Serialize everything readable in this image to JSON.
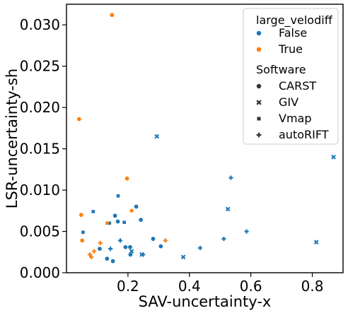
{
  "chart_data": {
    "type": "scatter",
    "xlabel": "SAV-uncertainty-x",
    "ylabel": "LSR-uncertainty-sh",
    "xlim": [
      0.0,
      0.9
    ],
    "ylim": [
      0.0,
      0.0325
    ],
    "xticks": [
      0.2,
      0.4,
      0.6,
      0.8
    ],
    "yticks": [
      0.0,
      0.005,
      0.01,
      0.015,
      0.02,
      0.025,
      0.03
    ],
    "xtick_labels": [
      "0.2",
      "0.4",
      "0.6",
      "0.8"
    ],
    "ytick_labels": [
      "0.000",
      "0.005",
      "0.010",
      "0.015",
      "0.020",
      "0.025",
      "0.030"
    ],
    "grid": false,
    "legend": {
      "placement": "top-right",
      "hue_title": "large_velodiff",
      "hue_entries": [
        {
          "label": "False",
          "color": "#1f77b4"
        },
        {
          "label": "True",
          "color": "#ff7f0e"
        }
      ],
      "style_title": "Software",
      "style_entries": [
        {
          "label": "CARST",
          "marker": "circle"
        },
        {
          "label": "GIV",
          "marker": "x"
        },
        {
          "label": "Vmap",
          "marker": "square"
        },
        {
          "label": "autoRIFT",
          "marker": "plus"
        }
      ]
    },
    "points": [
      {
        "x": 0.148,
        "y": 0.0312,
        "hue": "True",
        "software": "CARST"
      },
      {
        "x": 0.041,
        "y": 0.0186,
        "hue": "True",
        "software": "CARST"
      },
      {
        "x": 0.197,
        "y": 0.0114,
        "hue": "True",
        "software": "CARST"
      },
      {
        "x": 0.048,
        "y": 0.007,
        "hue": "True",
        "software": "CARST"
      },
      {
        "x": 0.051,
        "y": 0.0039,
        "hue": "True",
        "software": "CARST"
      },
      {
        "x": 0.227,
        "y": 0.008,
        "hue": "False",
        "software": "CARST"
      },
      {
        "x": 0.158,
        "y": 0.0069,
        "hue": "False",
        "software": "CARST"
      },
      {
        "x": 0.242,
        "y": 0.0064,
        "hue": "False",
        "software": "CARST"
      },
      {
        "x": 0.167,
        "y": 0.0062,
        "hue": "False",
        "software": "CARST"
      },
      {
        "x": 0.282,
        "y": 0.0041,
        "hue": "False",
        "software": "CARST"
      },
      {
        "x": 0.108,
        "y": 0.0029,
        "hue": "False",
        "software": "CARST"
      },
      {
        "x": 0.192,
        "y": 0.0031,
        "hue": "False",
        "software": "CARST"
      },
      {
        "x": 0.207,
        "y": 0.0031,
        "hue": "False",
        "software": "CARST"
      },
      {
        "x": 0.307,
        "y": 0.0032,
        "hue": "False",
        "software": "CARST"
      },
      {
        "x": 0.208,
        "y": 0.0022,
        "hue": "False",
        "software": "CARST"
      },
      {
        "x": 0.132,
        "y": 0.0017,
        "hue": "False",
        "software": "CARST"
      },
      {
        "x": 0.151,
        "y": 0.0014,
        "hue": "False",
        "software": "CARST"
      },
      {
        "x": 0.294,
        "y": 0.0165,
        "hue": "False",
        "software": "GIV"
      },
      {
        "x": 0.869,
        "y": 0.014,
        "hue": "False",
        "software": "GIV"
      },
      {
        "x": 0.525,
        "y": 0.0077,
        "hue": "False",
        "software": "GIV"
      },
      {
        "x": 0.813,
        "y": 0.0037,
        "hue": "False",
        "software": "GIV"
      },
      {
        "x": 0.212,
        "y": 0.0026,
        "hue": "False",
        "software": "GIV"
      },
      {
        "x": 0.245,
        "y": 0.0022,
        "hue": "False",
        "software": "GIV"
      },
      {
        "x": 0.38,
        "y": 0.0019,
        "hue": "False",
        "software": "GIV"
      },
      {
        "x": 0.168,
        "y": 0.0093,
        "hue": "False",
        "software": "Vmap"
      },
      {
        "x": 0.087,
        "y": 0.0074,
        "hue": "False",
        "software": "Vmap"
      },
      {
        "x": 0.054,
        "y": 0.0049,
        "hue": "False",
        "software": "Vmap"
      },
      {
        "x": 0.14,
        "y": 0.006,
        "hue": "False",
        "software": "Vmap"
      },
      {
        "x": 0.188,
        "y": 0.0061,
        "hue": "False",
        "software": "Vmap"
      },
      {
        "x": 0.212,
        "y": 0.0075,
        "hue": "True",
        "software": "Vmap"
      },
      {
        "x": 0.132,
        "y": 0.006,
        "hue": "True",
        "software": "Vmap"
      },
      {
        "x": 0.535,
        "y": 0.0115,
        "hue": "False",
        "software": "autoRIFT"
      },
      {
        "x": 0.586,
        "y": 0.005,
        "hue": "False",
        "software": "autoRIFT"
      },
      {
        "x": 0.512,
        "y": 0.0041,
        "hue": "False",
        "software": "autoRIFT"
      },
      {
        "x": 0.175,
        "y": 0.0039,
        "hue": "False",
        "software": "autoRIFT"
      },
      {
        "x": 0.435,
        "y": 0.003,
        "hue": "False",
        "software": "autoRIFT"
      },
      {
        "x": 0.143,
        "y": 0.0029,
        "hue": "False",
        "software": "autoRIFT"
      },
      {
        "x": 0.249,
        "y": 0.0022,
        "hue": "False",
        "software": "autoRIFT"
      },
      {
        "x": 0.322,
        "y": 0.0039,
        "hue": "True",
        "software": "autoRIFT"
      },
      {
        "x": 0.11,
        "y": 0.0036,
        "hue": "True",
        "software": "autoRIFT"
      },
      {
        "x": 0.09,
        "y": 0.0026,
        "hue": "True",
        "software": "autoRIFT"
      },
      {
        "x": 0.076,
        "y": 0.0022,
        "hue": "True",
        "software": "autoRIFT"
      },
      {
        "x": 0.081,
        "y": 0.0019,
        "hue": "True",
        "software": "autoRIFT"
      }
    ]
  }
}
